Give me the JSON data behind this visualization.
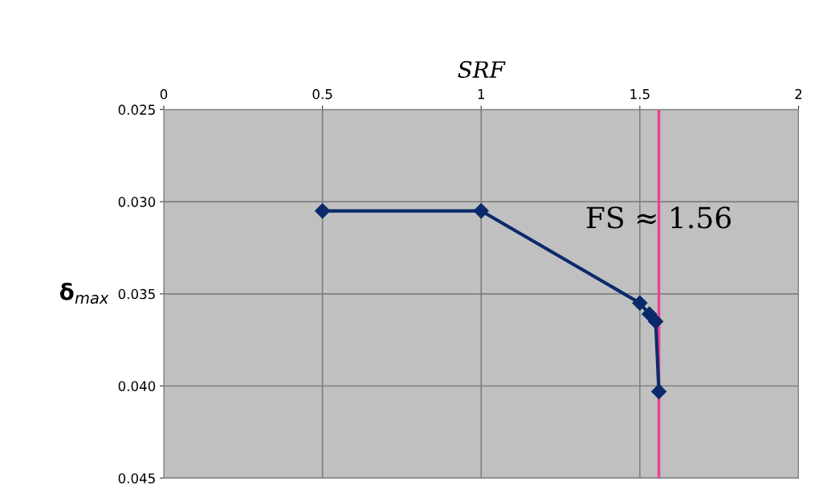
{
  "chart_data": {
    "type": "line",
    "xlabel": "SRF",
    "ylabel": "δ$_{max}$",
    "x": [
      0.5,
      1,
      1.5,
      1.53,
      1.55,
      1.56
    ],
    "series": [
      {
        "color": "#0b2a6b",
        "values": [
          0.0305,
          0.0305,
          0.0355,
          0.0361,
          0.0365,
          0.0403
        ]
      }
    ],
    "xlim": [
      0,
      2
    ],
    "xticks": [
      0,
      0.5,
      1,
      1.5,
      2
    ],
    "ylim": [
      0.045,
      0.025
    ],
    "yticks": [
      {
        "value": 0.025,
        "label": "0.025"
      },
      {
        "value": 0.03,
        "label": "0.030"
      },
      {
        "value": 0.035,
        "label": "0.035"
      },
      {
        "value": 0.04,
        "label": "0.040"
      },
      {
        "value": 0.045,
        "label": "0.045"
      }
    ],
    "ref_lines": [
      {
        "axis": "x",
        "value": 1.56,
        "label": "FS ≈ 1.56",
        "color": "#e8409a"
      }
    ],
    "grid": true,
    "marker": "diamond",
    "line_style": "solid"
  }
}
